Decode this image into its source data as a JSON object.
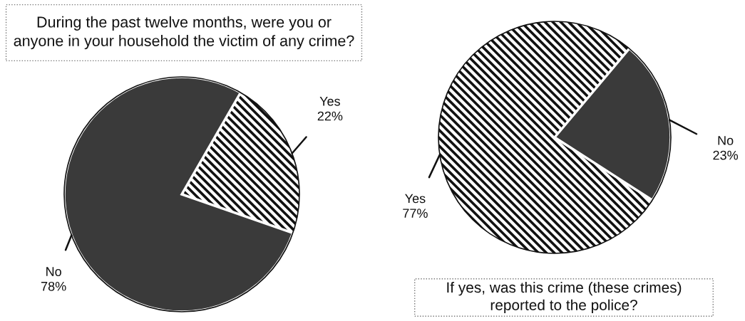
{
  "chart_data": [
    {
      "type": "pie",
      "title": "During the past twelve months, were you or\nanyone in your household the victim of any crime?",
      "categories": [
        "Yes",
        "No"
      ],
      "values": [
        22,
        78
      ],
      "colors": [
        "#ffffff",
        "#3a3a3a"
      ],
      "value_labels": [
        "22%",
        "78%"
      ]
    },
    {
      "type": "pie",
      "title": "If yes, was this crime (these crimes)\nreported to the police?",
      "categories": [
        "No",
        "Yes"
      ],
      "values": [
        23,
        77
      ],
      "colors": [
        "#3a3a3a",
        "#ffffff"
      ],
      "value_labels": [
        "23%",
        "77%"
      ]
    }
  ]
}
